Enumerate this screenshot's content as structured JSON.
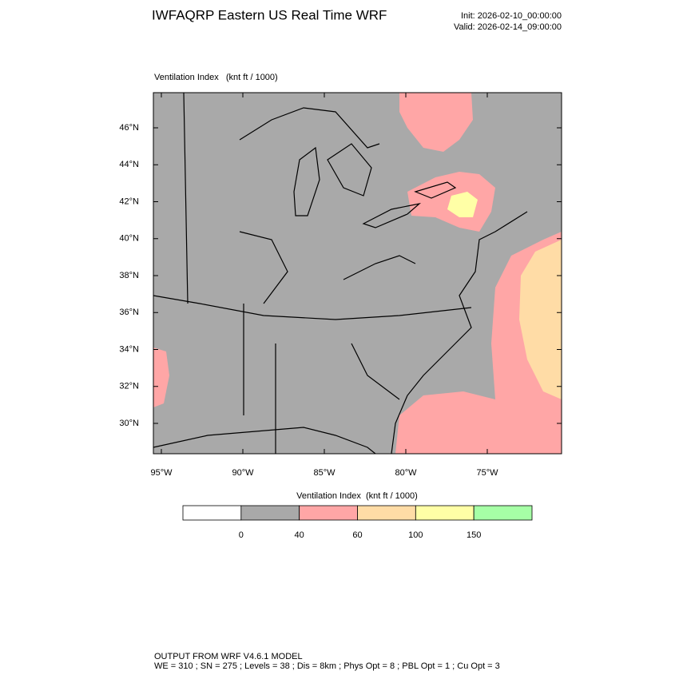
{
  "header": {
    "title": "IWFAQRP Eastern US Real Time WRF",
    "init": "Init: 2026-02-10_00:00:00",
    "valid": "Valid: 2026-02-14_09:00:00"
  },
  "map": {
    "label": "Ventilation Index   (knt ft / 1000)",
    "lat_labels": [
      "46°N",
      "44°N",
      "42°N",
      "40°N",
      "38°N",
      "36°N",
      "34°N",
      "32°N",
      "30°N"
    ],
    "lon_labels": [
      "95°W",
      "90°W",
      "85°W",
      "80°W",
      "75°W"
    ]
  },
  "colorbar": {
    "title": "Ventilation Index  (knt ft / 1000)",
    "levels": [
      0,
      40,
      60,
      100,
      150
    ],
    "colors": [
      "#ffffff",
      "#a9a9a9",
      "#ffa6a6",
      "#ffdca6",
      "#ffffa6",
      "#a6ffa6"
    ]
  },
  "footer": {
    "line1": "OUTPUT FROM WRF V4.6.1 MODEL",
    "line2": "WE = 310 ; SN = 275 ; Levels = 38 ; Dis = 8km ; Phys Opt = 8 ; PBL Opt = 1 ; Cu Opt = 3"
  }
}
